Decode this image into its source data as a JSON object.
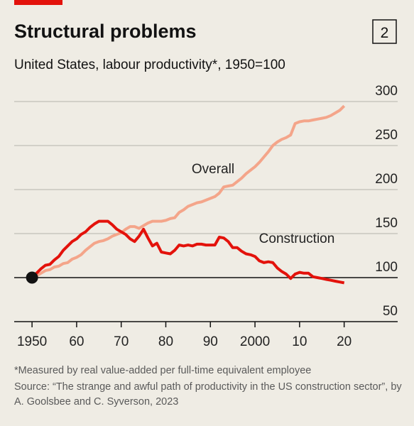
{
  "chart_data": {
    "type": "line",
    "title": "Structural problems",
    "badge": "2",
    "subtitle": "United States, labour productivity*, 1950=100",
    "footnote": "*Measured by real value-added per full-time equivalent employee",
    "source": "Source: “The strange and awful path of productivity in the US construction sector”, by A. Goolsbee and C. Syverson, 2023",
    "x": [
      1950,
      1951,
      1952,
      1953,
      1954,
      1955,
      1956,
      1957,
      1958,
      1959,
      1960,
      1961,
      1962,
      1963,
      1964,
      1965,
      1966,
      1967,
      1968,
      1969,
      1970,
      1971,
      1972,
      1973,
      1974,
      1975,
      1976,
      1977,
      1978,
      1979,
      1980,
      1981,
      1982,
      1983,
      1984,
      1985,
      1986,
      1987,
      1988,
      1989,
      1990,
      1991,
      1992,
      1993,
      1994,
      1995,
      1996,
      1997,
      1998,
      1999,
      2000,
      2001,
      2002,
      2003,
      2004,
      2005,
      2006,
      2007,
      2008,
      2009,
      2010,
      2011,
      2012,
      2013,
      2014,
      2015,
      2016,
      2017,
      2018,
      2019,
      2020
    ],
    "series": [
      {
        "name": "Overall",
        "color": "#f4a58a",
        "values": [
          100,
          102,
          105,
          108,
          109,
          112,
          113,
          116,
          117,
          121,
          123,
          126,
          131,
          135,
          139,
          141,
          142,
          144,
          147,
          149,
          151,
          155,
          158,
          158,
          156,
          159,
          162,
          164,
          164,
          164,
          165,
          167,
          168,
          174,
          177,
          181,
          183,
          185,
          186,
          188,
          190,
          192,
          196,
          203,
          204,
          205,
          209,
          213,
          218,
          222,
          226,
          231,
          237,
          243,
          250,
          254,
          257,
          259,
          262,
          275,
          277,
          278,
          278,
          279,
          280,
          281,
          282,
          284,
          287,
          290,
          295
        ]
      },
      {
        "name": "Construction",
        "color": "#e3120b",
        "values": [
          100,
          105,
          110,
          114,
          115,
          120,
          124,
          131,
          136,
          141,
          144,
          149,
          152,
          157,
          161,
          164,
          164,
          164,
          160,
          155,
          152,
          149,
          144,
          141,
          147,
          155,
          145,
          136,
          139,
          129,
          128,
          127,
          131,
          137,
          136,
          137,
          136,
          138,
          138,
          137,
          137,
          137,
          146,
          145,
          141,
          134,
          134,
          130,
          127,
          126,
          124,
          119,
          117,
          118,
          117,
          111,
          107,
          104,
          99,
          104,
          106,
          105,
          105,
          101,
          100,
          99,
          98,
          97,
          96,
          95,
          94
        ]
      }
    ],
    "xlim": [
      1946,
      2032
    ],
    "xticks": [
      1950,
      {
        "value": 1960,
        "label": "60"
      },
      {
        "value": 1970,
        "label": "70"
      },
      {
        "value": 1980,
        "label": "80"
      },
      {
        "value": 1990,
        "label": "90"
      },
      2000,
      {
        "value": 2010,
        "label": "10"
      },
      {
        "value": 2020,
        "label": "20"
      }
    ],
    "ylim": [
      50,
      300
    ],
    "yticks": [
      50,
      100,
      150,
      200,
      250,
      300
    ],
    "baseline": 100,
    "grid": true
  }
}
